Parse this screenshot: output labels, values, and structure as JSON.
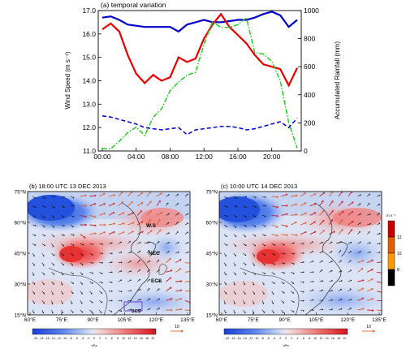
{
  "chart_data": [
    {
      "type": "line",
      "title": "(a) temporal variation",
      "ylabel_left": "Wind Speed (m s⁻¹)",
      "ylabel_right": "Accumulated Rainfall (mm)",
      "x_ticks": [
        "00:00",
        "04:00",
        "08:00",
        "12:00",
        "16:00",
        "20:00"
      ],
      "x_tick_hours": [
        0,
        4,
        8,
        12,
        16,
        20
      ],
      "xlim_hours": [
        0,
        23
      ],
      "ylim_left": [
        11.0,
        17.0
      ],
      "yticks_left": [
        "11.0",
        "12.0",
        "13.0",
        "14.0",
        "15.0",
        "16.0",
        "17.0"
      ],
      "ylim_right": [
        0,
        1000
      ],
      "yticks_right": [
        "0",
        "200",
        "400",
        "600",
        "800",
        "1000"
      ],
      "x_hours": [
        0,
        1,
        2,
        3,
        4,
        5,
        6,
        7,
        8,
        9,
        10,
        11,
        12,
        13,
        14,
        15,
        16,
        17,
        18,
        19,
        20,
        21,
        22,
        23
      ],
      "series": [
        {
          "axis": "left",
          "color": "#0000cc",
          "dash": "solid",
          "values": [
            16.7,
            16.75,
            16.6,
            16.4,
            16.35,
            16.3,
            16.3,
            16.3,
            16.3,
            16.1,
            16.4,
            16.5,
            16.6,
            16.5,
            16.5,
            16.55,
            16.6,
            16.6,
            16.7,
            16.85,
            16.95,
            16.8,
            16.3,
            16.6
          ]
        },
        {
          "axis": "left",
          "color": "#ee0000",
          "dash": "solid",
          "values": [
            16.2,
            16.45,
            16.1,
            15.1,
            14.3,
            13.9,
            14.25,
            14.0,
            14.15,
            15.0,
            14.8,
            14.95,
            15.8,
            16.4,
            16.85,
            16.3,
            15.95,
            15.6,
            15.1,
            14.7,
            14.6,
            14.5,
            13.8,
            14.55
          ]
        },
        {
          "axis": "right",
          "color": "#22cc22",
          "dash": "dashdot",
          "values": [
            15,
            15,
            70,
            130,
            170,
            110,
            240,
            300,
            430,
            490,
            540,
            560,
            760,
            920,
            880,
            880,
            900,
            950,
            700,
            690,
            640,
            500,
            200,
            20
          ]
        },
        {
          "axis": "right",
          "color": "#0000cc",
          "dash": "dashed",
          "values": [
            12.5,
            12.45,
            12.35,
            12.25,
            12.15,
            12.0,
            11.95,
            11.9,
            11.95,
            12.0,
            11.7,
            11.9,
            11.95,
            12.0,
            12.05,
            12.05,
            12.0,
            11.9,
            11.95,
            12.05,
            12.15,
            12.25,
            12.0,
            12.4
          ],
          "values_axis_units_note": "left"
        }
      ]
    },
    {
      "type": "heatmap",
      "title": "(b) 18:00 UTC 13 DEC 2013",
      "lon_ticks": [
        "60°E",
        "75°E",
        "90°E",
        "105°E",
        "120°E",
        "135°E"
      ],
      "lat_ticks": [
        "75°N",
        "60°N",
        "45°N",
        "30°N",
        "15°N"
      ],
      "labels": [
        "W.S",
        "NEC",
        "ECS",
        "SCS"
      ],
      "colorbar": {
        "ticks": [
          "-20",
          "-18",
          "-16",
          "-14",
          "-12",
          "-10",
          "-8",
          "-6",
          "-4",
          "-2",
          "0",
          "2",
          "4",
          "6",
          "8",
          "10",
          "12",
          "14",
          "16",
          "18",
          "20"
        ],
        "unit": "hPa"
      },
      "vector_ref": "10"
    },
    {
      "type": "heatmap",
      "title": "(c) 10:00 UTC 14 DEC 2013",
      "lon_ticks": [
        "60°E",
        "75°E",
        "90°E",
        "105°E",
        "120°E",
        "135°E"
      ],
      "lat_ticks": [
        "75°N",
        "60°N",
        "45°N",
        "30°N",
        "15°N"
      ],
      "colorbar": {
        "ticks": [
          "-20",
          "-18",
          "-16",
          "-14",
          "-12",
          "-10",
          "-8",
          "-6",
          "-4",
          "-2",
          "0",
          "2",
          "4",
          "6",
          "8",
          "10",
          "12",
          "14",
          "16",
          "18",
          "20"
        ],
        "unit": "hPa"
      },
      "vector_ref": "10",
      "side_colorbar": {
        "unit": "m s⁻¹",
        "ticks": [
          "12",
          "10",
          "8"
        ],
        "colors": [
          "#c80000",
          "#e06000",
          "#ff9900",
          "#000000"
        ]
      }
    }
  ]
}
